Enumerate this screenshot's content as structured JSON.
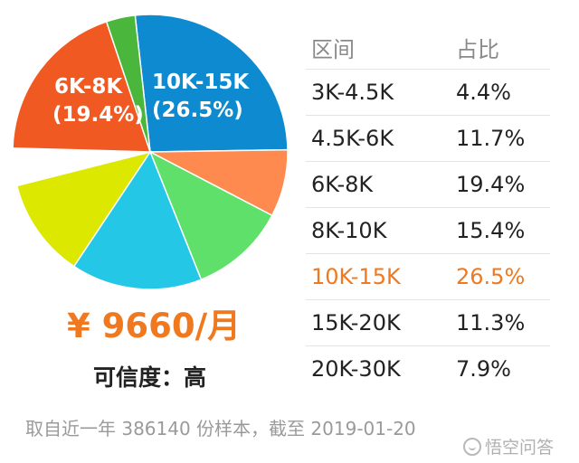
{
  "chart_data": {
    "type": "pie",
    "title": "",
    "slices": [
      {
        "label": "10K-15K",
        "value": 26.5,
        "display": "(26.5%)",
        "color": "#0d8ad0"
      },
      {
        "label": "20K-30K",
        "value": 7.9,
        "display": "",
        "color": "#ff8a50"
      },
      {
        "label": "15K-20K",
        "value": 11.3,
        "display": "",
        "color": "#5ee06a"
      },
      {
        "label": "8K-10K",
        "value": 15.4,
        "display": "",
        "color": "#24c7e6"
      },
      {
        "label": "4.5K-6K",
        "value": 11.7,
        "display": "",
        "color": "#dde800"
      },
      {
        "label": "3K-4.5K",
        "value": 4.4,
        "display": "",
        "color": "#ffffff"
      },
      {
        "label": "6K-8K",
        "value": 19.4,
        "display": "(19.4%)",
        "color": "#f05a22"
      },
      {
        "label": "",
        "value": 3.4,
        "display": "",
        "color": "#4ab73c"
      }
    ],
    "labeled_slices": [
      {
        "label": "6K-8K",
        "display": "(19.4%)"
      },
      {
        "label": "10K-15K",
        "display": "(26.5%)"
      }
    ]
  },
  "salary": "¥ 9660/月",
  "credibility": "可信度：高",
  "table": {
    "headers": [
      "区间",
      "占比"
    ],
    "rows": [
      {
        "range": "3K-4.5K",
        "ratio": "4.4%"
      },
      {
        "range": "4.5K-6K",
        "ratio": "11.7%"
      },
      {
        "range": "6K-8K",
        "ratio": "19.4%"
      },
      {
        "range": "8K-10K",
        "ratio": "15.4%"
      },
      {
        "range": "10K-15K",
        "ratio": "26.5%",
        "highlight": true
      },
      {
        "range": "15K-20K",
        "ratio": "11.3%"
      },
      {
        "range": "20K-30K",
        "ratio": "7.9%"
      }
    ]
  },
  "footnote": "取自近一年 386140 份样本，截至 2019-01-20",
  "watermark": "悟空问答",
  "colors": {
    "accent": "#f0781e",
    "muted": "#9a9a9a"
  }
}
